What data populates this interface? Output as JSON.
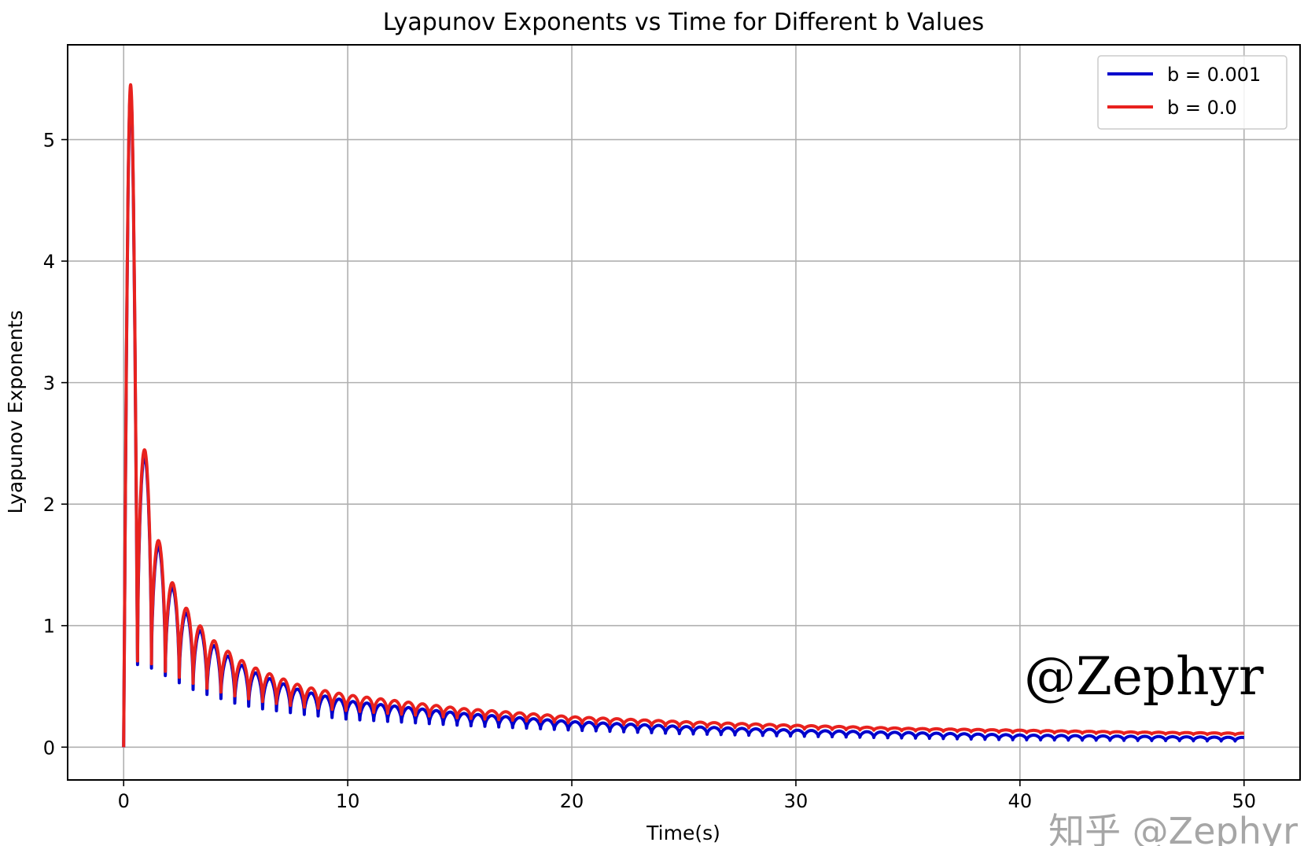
{
  "chart_data": {
    "type": "line",
    "title": "Lyapunov Exponents vs Time for Different b Values",
    "xlabel": "Time(s)",
    "ylabel": "Lyapunov Exponents",
    "xlim": [
      -2.5,
      52.5
    ],
    "ylim": [
      -0.27,
      5.78
    ],
    "xticks": [
      0,
      10,
      20,
      30,
      40,
      50
    ],
    "yticks": [
      0,
      1,
      2,
      3,
      4,
      5
    ],
    "grid": true,
    "legend_position": "top-right",
    "oscillation_period": 0.62,
    "envelope_t": [
      0.3,
      0.95,
      1.55,
      2.15,
      2.8,
      3.4,
      4,
      5,
      6,
      8,
      10,
      15,
      20,
      25,
      30,
      35,
      40,
      45,
      50
    ],
    "series": [
      {
        "name": "b = 0.001",
        "color": "#0000cc",
        "upper": [
          5.45,
          2.3,
          1.65,
          1.32,
          1.1,
          0.96,
          0.84,
          0.7,
          0.6,
          0.46,
          0.38,
          0.28,
          0.21,
          0.17,
          0.14,
          0.12,
          0.1,
          0.09,
          0.08
        ],
        "lower": [
          0.68,
          0.68,
          0.62,
          0.56,
          0.5,
          0.45,
          0.42,
          0.36,
          0.32,
          0.27,
          0.23,
          0.18,
          0.14,
          0.11,
          0.09,
          0.075,
          0.06,
          0.055,
          0.05
        ]
      },
      {
        "name": "b = 0.0",
        "color": "#e8221e",
        "upper": [
          5.5,
          2.35,
          1.7,
          1.36,
          1.14,
          1.0,
          0.88,
          0.74,
          0.64,
          0.5,
          0.43,
          0.32,
          0.25,
          0.21,
          0.18,
          0.155,
          0.14,
          0.125,
          0.115
        ],
        "lower": [
          0.7,
          0.72,
          0.65,
          0.6,
          0.55,
          0.5,
          0.47,
          0.42,
          0.38,
          0.33,
          0.3,
          0.24,
          0.2,
          0.17,
          0.15,
          0.135,
          0.12,
          0.11,
          0.1
        ]
      }
    ],
    "annotations": [
      "@Zephyr"
    ]
  },
  "watermark": "知乎 @Zephyr"
}
